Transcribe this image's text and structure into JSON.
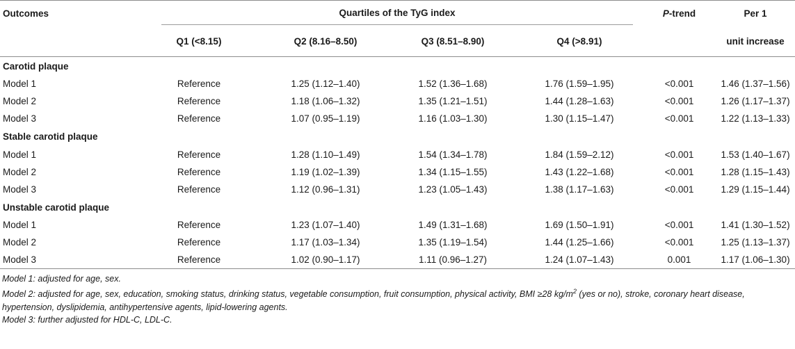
{
  "header": {
    "outcomes": "Outcomes",
    "quartiles_group": "Quartiles of the TyG index",
    "p_trend_italic": "P",
    "p_trend_rest": "-trend",
    "per1_line1": "Per 1",
    "per1_line2": "unit increase",
    "q1": "Q1 (<8.15)",
    "q2": "Q2 (8.16–8.50)",
    "q3": "Q3 (8.51–8.90)",
    "q4": "Q4 (>8.91)"
  },
  "sections": [
    {
      "title": "Carotid plaque",
      "rows": [
        {
          "model": "Model 1",
          "q1": "Reference",
          "q2": "1.25 (1.12–1.40)",
          "q3": "1.52 (1.36–1.68)",
          "q4": "1.76 (1.59–1.95)",
          "p": "<0.001",
          "per1": "1.46 (1.37–1.56)"
        },
        {
          "model": "Model 2",
          "q1": "Reference",
          "q2": "1.18 (1.06–1.32)",
          "q3": "1.35 (1.21–1.51)",
          "q4": "1.44 (1.28–1.63)",
          "p": "<0.001",
          "per1": "1.26 (1.17–1.37)"
        },
        {
          "model": "Model 3",
          "q1": "Reference",
          "q2": "1.07 (0.95–1.19)",
          "q3": "1.16 (1.03–1.30)",
          "q4": "1.30 (1.15–1.47)",
          "p": "<0.001",
          "per1": "1.22 (1.13–1.33)"
        }
      ]
    },
    {
      "title": "Stable carotid plaque",
      "rows": [
        {
          "model": "Model 1",
          "q1": "Reference",
          "q2": "1.28 (1.10–1.49)",
          "q3": "1.54 (1.34–1.78)",
          "q4": "1.84 (1.59–2.12)",
          "p": "<0.001",
          "per1": "1.53 (1.40–1.67)"
        },
        {
          "model": "Model 2",
          "q1": "Reference",
          "q2": "1.19 (1.02–1.39)",
          "q3": "1.34 (1.15–1.55)",
          "q4": "1.43 (1.22–1.68)",
          "p": "<0.001",
          "per1": "1.28 (1.15–1.43)"
        },
        {
          "model": "Model 3",
          "q1": "Reference",
          "q2": "1.12 (0.96–1.31)",
          "q3": "1.23 (1.05–1.43)",
          "q4": "1.38 (1.17–1.63)",
          "p": "<0.001",
          "per1": "1.29 (1.15–1.44)"
        }
      ]
    },
    {
      "title": "Unstable carotid plaque",
      "rows": [
        {
          "model": "Model 1",
          "q1": "Reference",
          "q2": "1.23 (1.07–1.40)",
          "q3": "1.49 (1.31–1.68)",
          "q4": "1.69 (1.50–1.91)",
          "p": "<0.001",
          "per1": "1.41 (1.30–1.52)"
        },
        {
          "model": "Model 2",
          "q1": "Reference",
          "q2": "1.17 (1.03–1.34)",
          "q3": "1.35 (1.19–1.54)",
          "q4": "1.44 (1.25–1.66)",
          "p": "<0.001",
          "per1": "1.25 (1.13–1.37)"
        },
        {
          "model": "Model 3",
          "q1": "Reference",
          "q2": "1.02 (0.90–1.17)",
          "q3": "1.11 (0.96–1.27)",
          "q4": "1.24 (1.07–1.43)",
          "p": "0.001",
          "per1": "1.17 (1.06–1.30)"
        }
      ]
    }
  ],
  "footnotes": {
    "model1": "Model 1: adjusted for age, sex.",
    "model2_before_sup": "Model 2: adjusted for age, sex, education, smoking status, drinking status, vegetable consumption, fruit consumption, physical activity, BMI ≥28 kg/m",
    "model2_sup": "2",
    "model2_after_sup": " (yes or no), stroke, coronary heart disease, hypertension, dyslipidemia, antihypertensive agents, lipid-lowering agents.",
    "model3": "Model 3: further adjusted for HDL-C, LDL-C."
  }
}
